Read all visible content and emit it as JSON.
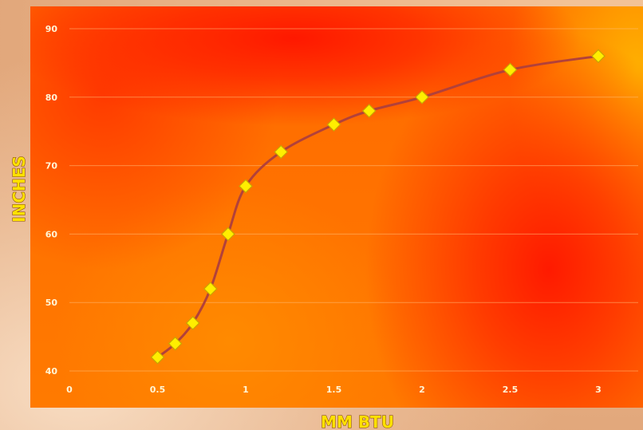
{
  "chart_data": {
    "type": "line",
    "xlabel": "MM BTU",
    "ylabel": "INCHES",
    "xlim": [
      0,
      3
    ],
    "ylim": [
      40,
      90
    ],
    "x_ticks": [
      "0",
      "0.5",
      "1",
      "1.5",
      "2",
      "2.5",
      "3"
    ],
    "y_ticks": [
      "40",
      "50",
      "60",
      "70",
      "80",
      "90"
    ],
    "grid": true,
    "series": [
      {
        "x": [
          0.5,
          0.6,
          0.7,
          0.8,
          0.9,
          1.0,
          1.2,
          1.5,
          1.7,
          2.0,
          2.5,
          3.0
        ],
        "values": [
          42,
          44,
          47,
          52,
          60,
          67,
          72,
          76,
          78,
          80,
          84,
          86
        ]
      }
    ],
    "colors": {
      "line": "#b2413a",
      "marker_fill": "#ffee00",
      "marker_stroke": "#c9a400"
    }
  }
}
